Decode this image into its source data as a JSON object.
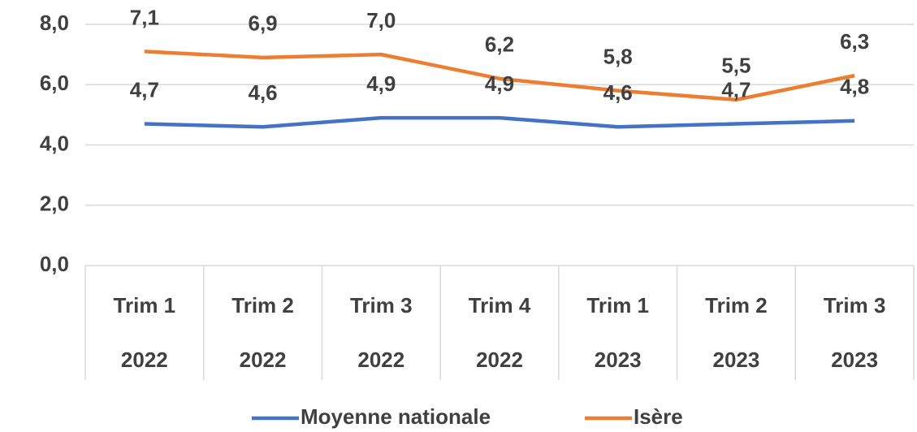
{
  "chart_data": {
    "type": "line",
    "categories": [
      [
        "Trim 1",
        "2022"
      ],
      [
        "Trim 2",
        "2022"
      ],
      [
        "Trim 3",
        "2022"
      ],
      [
        "Trim 4",
        "2022"
      ],
      [
        "Trim 1",
        "2023"
      ],
      [
        "Trim 2",
        "2023"
      ],
      [
        "Trim 3",
        "2023"
      ]
    ],
    "series": [
      {
        "name": "Moyenne nationale",
        "color": "#4472c4",
        "values": [
          4.7,
          4.6,
          4.9,
          4.9,
          4.6,
          4.7,
          4.8
        ],
        "value_labels": [
          "4,7",
          "4,6",
          "4,9",
          "4,9",
          "4,6",
          "4,7",
          "4,8"
        ]
      },
      {
        "name": "Isère",
        "color": "#ed7d31",
        "values": [
          7.1,
          6.9,
          7.0,
          6.2,
          5.8,
          5.5,
          6.3
        ],
        "value_labels": [
          "7,1",
          "6,9",
          "7,0",
          "6,2",
          "5,8",
          "5,5",
          "6,3"
        ]
      }
    ],
    "ylim": [
      0,
      8
    ],
    "yticks": [
      {
        "value": 0,
        "label": "0,0"
      },
      {
        "value": 2,
        "label": "2,0"
      },
      {
        "value": 4,
        "label": "4,0"
      },
      {
        "value": 6,
        "label": "6,0"
      },
      {
        "value": 8,
        "label": "8,0"
      }
    ],
    "grid": true,
    "legend": "bottom"
  }
}
